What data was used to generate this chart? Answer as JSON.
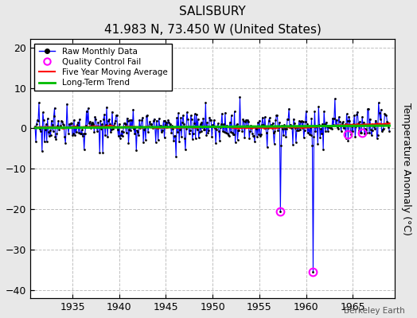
{
  "title": "SALISBURY",
  "subtitle": "41.983 N, 73.450 W (United States)",
  "ylabel": "Temperature Anomaly (°C)",
  "watermark": "Berkeley Earth",
  "xlim": [
    1930.5,
    1969.5
  ],
  "ylim": [
    -42,
    22
  ],
  "yticks": [
    -40,
    -30,
    -20,
    -10,
    0,
    10,
    20
  ],
  "xticks": [
    1935,
    1940,
    1945,
    1950,
    1955,
    1960,
    1965
  ],
  "start_year": 1931,
  "end_year": 1968,
  "seed": 17,
  "raw_color": "#0000ff",
  "ma_color": "#ff0000",
  "trend_color": "#00bb00",
  "qc_color": "#ff00ff",
  "qc_point1_time": 1957.25,
  "qc_point1_value": -20.5,
  "qc_point2_time": 1960.75,
  "qc_point2_value": -35.5,
  "background_color": "#e8e8e8",
  "plot_background": "#ffffff",
  "grid_color": "#c0c0c0",
  "legend_entries": [
    "Raw Monthly Data",
    "Quality Control Fail",
    "Five Year Moving Average",
    "Long-Term Trend"
  ]
}
